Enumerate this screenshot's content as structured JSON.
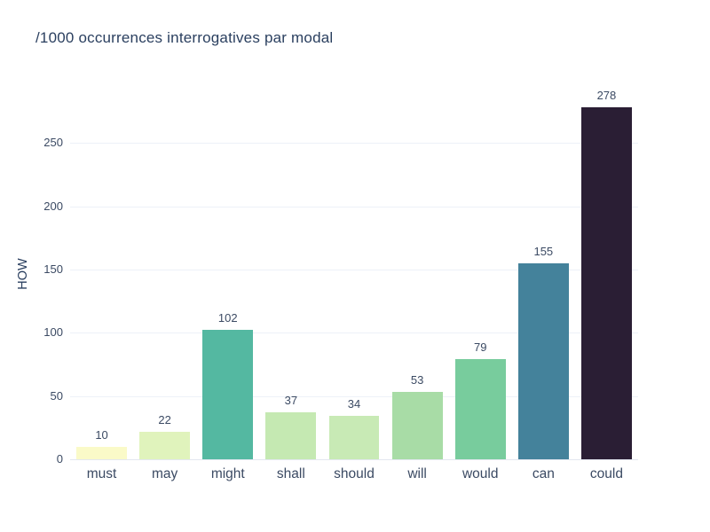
{
  "chart_data": {
    "type": "bar",
    "title": "/1000 occurrences interrogatives par modal",
    "xlabel": "",
    "ylabel": "HOW",
    "categories": [
      "must",
      "may",
      "might",
      "shall",
      "should",
      "will",
      "would",
      "can",
      "could"
    ],
    "values": [
      10,
      22,
      102,
      37,
      34,
      53,
      79,
      155,
      278
    ],
    "value_labels": [
      "10",
      "22",
      "102",
      "37",
      "34",
      "53",
      "79",
      "155",
      "278"
    ],
    "bar_colors": [
      "#fafac8",
      "#e0f3bc",
      "#54b8a1",
      "#c5e9b2",
      "#c8eab5",
      "#a8dca6",
      "#78cc9d",
      "#44829b",
      "#2a1e34"
    ],
    "yticks": [
      0,
      50,
      100,
      150,
      200,
      250
    ],
    "ylim": [
      0,
      293
    ],
    "grid": "horizontal",
    "legend": "none",
    "colors": {
      "title_text": "#2a3f5f",
      "tick_text": "#3b4a63",
      "gridline": "#edf1f8",
      "axis_line": "#e3e7f0",
      "background": "#ffffff"
    }
  }
}
